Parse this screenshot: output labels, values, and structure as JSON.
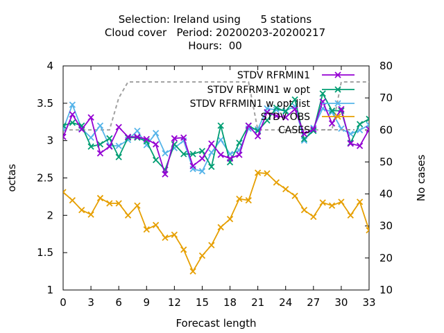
{
  "chart_data": {
    "type": "line",
    "title": [
      "Selection: Ireland using      5 stations",
      "Cloud cover   Period: 20200203-20200217",
      "Hours:  00"
    ],
    "xlabel": "Forecast length",
    "ylabel": "octas",
    "y2label": "No cases",
    "xlim": [
      0,
      33
    ],
    "ylim": [
      1,
      4
    ],
    "y2lim": [
      10,
      80
    ],
    "xticks": [
      0,
      3,
      6,
      9,
      12,
      15,
      18,
      21,
      24,
      27,
      30,
      33
    ],
    "yticks": [
      1,
      1.5,
      2,
      2.5,
      3,
      3.5,
      4
    ],
    "y2ticks": [
      10,
      20,
      30,
      40,
      50,
      60,
      70,
      80
    ],
    "grid": false,
    "legend_position": "top-right",
    "x": [
      0,
      1,
      2,
      3,
      4,
      5,
      6,
      7,
      8,
      9,
      10,
      11,
      12,
      13,
      14,
      15,
      16,
      17,
      18,
      19,
      20,
      21,
      22,
      23,
      24,
      25,
      26,
      27,
      28,
      29,
      30,
      31,
      32,
      33
    ],
    "series": [
      {
        "name": "STDV RFRMIN1",
        "color": "#9400d3",
        "marker": "x",
        "axis": "y",
        "values": [
          3.05,
          3.35,
          3.15,
          3.31,
          2.83,
          2.92,
          3.18,
          3.05,
          3.05,
          3.02,
          2.95,
          2.55,
          3.03,
          3.04,
          2.66,
          2.76,
          2.96,
          2.81,
          2.76,
          2.81,
          3.2,
          3.06,
          3.38,
          3.33,
          3.31,
          3.42,
          3.09,
          3.15,
          3.52,
          3.23,
          3.42,
          2.96,
          2.93,
          3.15
        ]
      },
      {
        "name": "STDV RFRMIN1 w opt",
        "color": "#009e73",
        "marker": "x",
        "axis": "y",
        "values": [
          3.2,
          3.24,
          3.2,
          2.92,
          2.95,
          3.03,
          2.78,
          3.04,
          3.04,
          2.99,
          2.74,
          2.61,
          2.95,
          2.82,
          2.82,
          2.86,
          2.65,
          3.2,
          2.71,
          2.97,
          3.2,
          3.13,
          3.27,
          3.44,
          3.39,
          3.55,
          3.02,
          3.13,
          3.63,
          3.4,
          3.4,
          2.97,
          3.22,
          3.29
        ]
      },
      {
        "name": "STDV RFRMIN1 w opt list",
        "color": "#56b4e9",
        "marker": "x",
        "axis": "y",
        "values": [
          3.15,
          3.48,
          3.16,
          3.04,
          3.2,
          2.93,
          2.93,
          3.01,
          3.13,
          2.94,
          3.1,
          2.83,
          2.9,
          3.0,
          2.62,
          2.59,
          2.84,
          3.01,
          2.82,
          2.87,
          3.16,
          3.15,
          3.43,
          3.41,
          3.4,
          3.46,
          3.0,
          3.17,
          3.43,
          3.38,
          3.16,
          3.09,
          3.14,
          3.21
        ]
      },
      {
        "name": "STDV OBS",
        "color": "#e69f00",
        "marker": "x",
        "axis": "y",
        "values": [
          2.31,
          2.2,
          2.07,
          2.01,
          2.23,
          2.16,
          2.16,
          2.0,
          2.13,
          1.81,
          1.87,
          1.7,
          1.74,
          1.54,
          1.25,
          1.46,
          1.6,
          1.84,
          1.95,
          2.22,
          2.2,
          2.57,
          2.56,
          2.44,
          2.35,
          2.26,
          2.07,
          1.98,
          2.17,
          2.13,
          2.18,
          2.0,
          2.18,
          1.8
        ]
      },
      {
        "name": "CASES",
        "color": "#a0a0a0",
        "marker": "none",
        "dashed": true,
        "axis": "y2",
        "values": [
          60,
          60,
          60,
          60,
          60,
          60,
          70,
          75,
          75,
          75,
          75,
          75,
          75,
          75,
          75,
          75,
          75,
          75,
          75,
          75,
          75,
          60,
          60,
          60,
          60,
          60,
          60,
          60,
          60,
          60,
          75,
          75,
          75,
          75
        ]
      }
    ]
  }
}
